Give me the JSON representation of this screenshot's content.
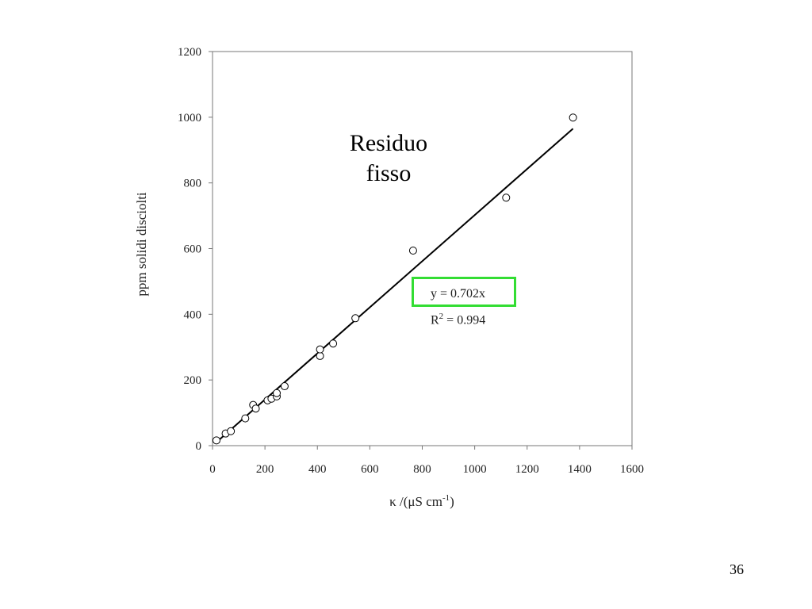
{
  "slide": {
    "number": "36"
  },
  "overlay": {
    "title_line1": "Residuo",
    "title_line2": "fisso",
    "equation": "y = 0.702x",
    "r2_prefix": "R",
    "r2_sup": "2",
    "r2_value": " = 0.994"
  },
  "axis_labels": {
    "x_prefix": "κ /(μS cm",
    "x_sup": "-1",
    "x_suffix": ")",
    "y": "ppm solidi disciolti"
  },
  "colors": {
    "highlight_box": "#33dd33",
    "marker": "#000000",
    "trendline": "#000000"
  },
  "chart_data": {
    "type": "scatter",
    "xlim": [
      0,
      1600
    ],
    "ylim": [
      0,
      1200
    ],
    "xticks": [
      0,
      200,
      400,
      600,
      800,
      1000,
      1200,
      1400,
      1600
    ],
    "yticks": [
      0,
      200,
      400,
      600,
      800,
      1000,
      1200
    ],
    "grid": false,
    "marker": "open-circle",
    "points": [
      {
        "x": 15,
        "y": 16
      },
      {
        "x": 50,
        "y": 37
      },
      {
        "x": 70,
        "y": 44
      },
      {
        "x": 125,
        "y": 83
      },
      {
        "x": 155,
        "y": 124
      },
      {
        "x": 165,
        "y": 113
      },
      {
        "x": 210,
        "y": 138
      },
      {
        "x": 225,
        "y": 143
      },
      {
        "x": 245,
        "y": 150
      },
      {
        "x": 245,
        "y": 160
      },
      {
        "x": 275,
        "y": 181
      },
      {
        "x": 410,
        "y": 273
      },
      {
        "x": 410,
        "y": 293
      },
      {
        "x": 460,
        "y": 311
      },
      {
        "x": 545,
        "y": 388
      },
      {
        "x": 765,
        "y": 594
      },
      {
        "x": 1120,
        "y": 755
      },
      {
        "x": 1375,
        "y": 999
      }
    ],
    "trendline": {
      "type": "linear",
      "slope": 0.702,
      "intercept": 0,
      "x_range": [
        10,
        1375
      ]
    }
  }
}
